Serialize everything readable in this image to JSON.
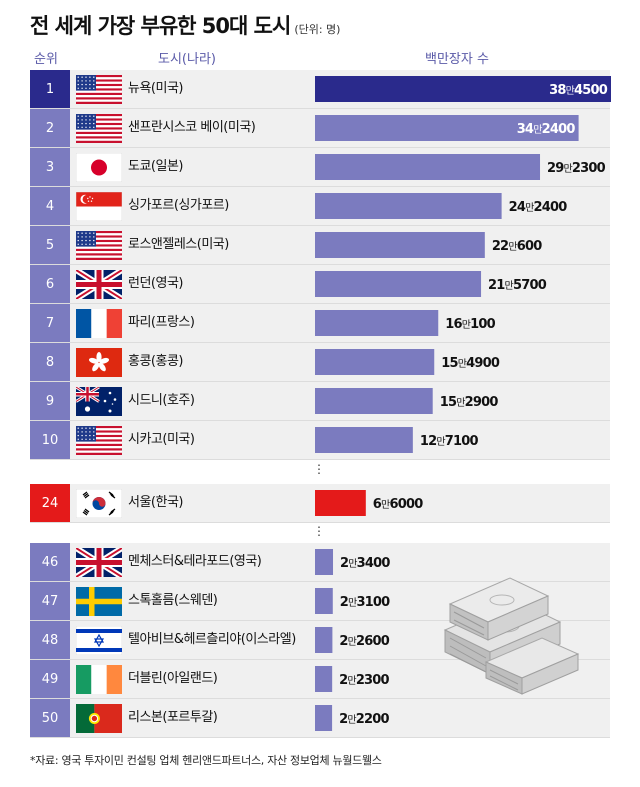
{
  "title": "전 세계 가장 부유한 50대 도시",
  "unit": "(단위: 명)",
  "headers": {
    "rank": "순위",
    "city": "도시(나라)",
    "value": "백만장자 수"
  },
  "source": "*자료: 영국 투자이민 컨설팅 업체 헨리앤드파트너스, 자산 정보업체 뉴월드웰스",
  "colors": {
    "top": "#2a2a8c",
    "bar": "#7b7bbf",
    "korea": "#e41a1a"
  },
  "chart_data": {
    "type": "bar",
    "orientation": "horizontal",
    "title": "전 세계 가장 부유한 50대 도시",
    "unit": "(단위: 명)",
    "value_header": "백만장자 수",
    "xlim": [
      0,
      384500
    ],
    "rows": [
      {
        "rank": "1",
        "city": "뉴욕(미국)",
        "flag": "usa-flag-icon",
        "value": 384500,
        "label_a": "38",
        "label_m": "만",
        "label_b": "4500",
        "label_inside": true
      },
      {
        "rank": "2",
        "city": "샌프란시스코 베이(미국)",
        "flag": "usa-flag-icon",
        "value": 342400,
        "label_a": "34",
        "label_m": "만",
        "label_b": "2400",
        "label_inside": true
      },
      {
        "rank": "3",
        "city": "도쿄(일본)",
        "flag": "japan-flag-icon",
        "value": 292300,
        "label_a": "29",
        "label_m": "만",
        "label_b": "2300",
        "label_inside": false
      },
      {
        "rank": "4",
        "city": "싱가포르(싱가포르)",
        "flag": "singapore-flag-icon",
        "value": 242400,
        "label_a": "24",
        "label_m": "만",
        "label_b": "2400",
        "label_inside": false
      },
      {
        "rank": "5",
        "city": "로스앤젤레스(미국)",
        "flag": "usa-flag-icon",
        "value": 220600,
        "label_a": "22",
        "label_m": "만",
        "label_b": "600",
        "label_inside": false
      },
      {
        "rank": "6",
        "city": "런던(영국)",
        "flag": "uk-flag-icon",
        "value": 215700,
        "label_a": "21",
        "label_m": "만",
        "label_b": "5700",
        "label_inside": false
      },
      {
        "rank": "7",
        "city": "파리(프랑스)",
        "flag": "france-flag-icon",
        "value": 160100,
        "label_a": "16",
        "label_m": "만",
        "label_b": "100",
        "label_inside": false
      },
      {
        "rank": "8",
        "city": "홍콩(홍콩)",
        "flag": "hongkong-flag-icon",
        "value": 154900,
        "label_a": "15",
        "label_m": "만",
        "label_b": "4900",
        "label_inside": false
      },
      {
        "rank": "9",
        "city": "시드니(호주)",
        "flag": "australia-flag-icon",
        "value": 152900,
        "label_a": "15",
        "label_m": "만",
        "label_b": "2900",
        "label_inside": false
      },
      {
        "rank": "10",
        "city": "시카고(미국)",
        "flag": "usa-flag-icon",
        "value": 127100,
        "label_a": "12",
        "label_m": "만",
        "label_b": "7100",
        "label_inside": false
      },
      {
        "rank": "24",
        "city": "서울(한국)",
        "flag": "korea-flag-icon",
        "value": 66000,
        "label_a": "6",
        "label_m": "만",
        "label_b": "6000",
        "label_inside": false,
        "highlight": true
      },
      {
        "rank": "46",
        "city": "멘체스터&테라포드(영국)",
        "flag": "uk-flag-icon",
        "value": 23400,
        "label_a": "2",
        "label_m": "만",
        "label_b": "3400",
        "label_inside": false
      },
      {
        "rank": "47",
        "city": "스톡홀름(스웨덴)",
        "flag": "sweden-flag-icon",
        "value": 23100,
        "label_a": "2",
        "label_m": "만",
        "label_b": "3100",
        "label_inside": false
      },
      {
        "rank": "48",
        "city": "텔아비브&헤르츨리야(이스라엘)",
        "flag": "israel-flag-icon",
        "value": 22600,
        "label_a": "2",
        "label_m": "만",
        "label_b": "2600",
        "label_inside": false
      },
      {
        "rank": "49",
        "city": "더블린(아일랜드)",
        "flag": "ireland-flag-icon",
        "value": 22300,
        "label_a": "2",
        "label_m": "만",
        "label_b": "2300",
        "label_inside": false
      },
      {
        "rank": "50",
        "city": "리스본(포르투갈)",
        "flag": "portugal-flag-icon",
        "value": 22200,
        "label_a": "2",
        "label_m": "만",
        "label_b": "2200",
        "label_inside": false
      }
    ]
  }
}
